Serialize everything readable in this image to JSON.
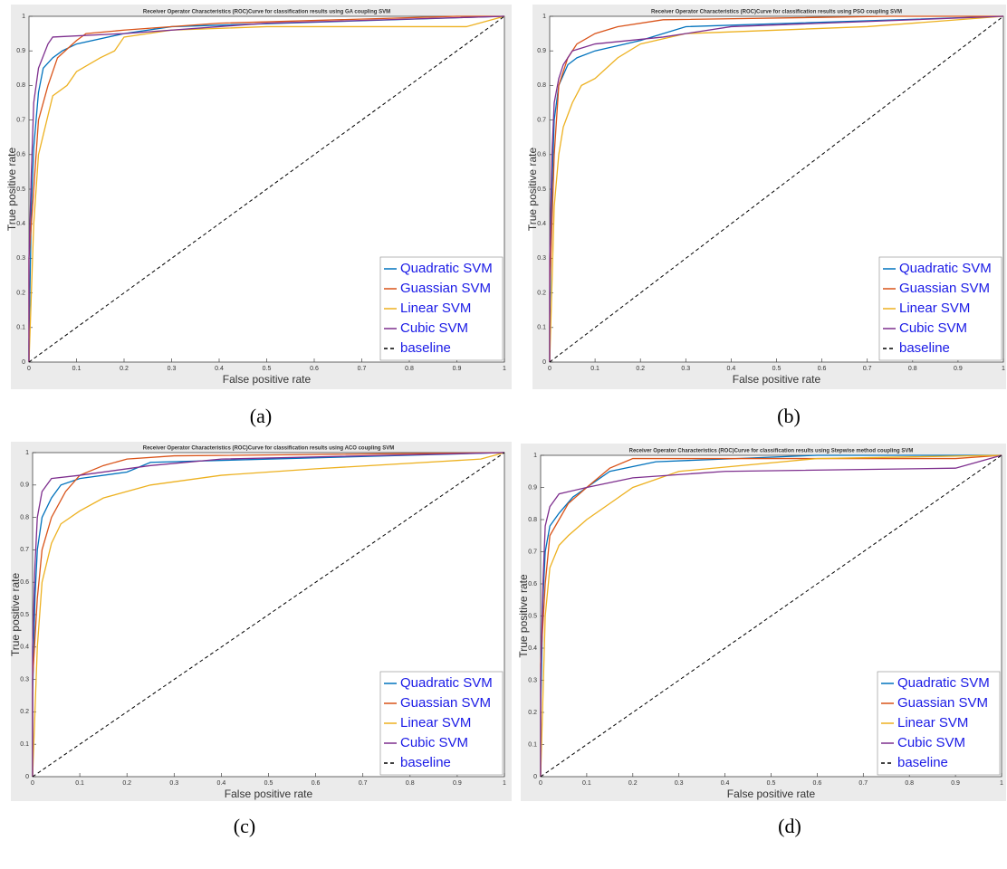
{
  "chart_data": [
    {
      "type": "line",
      "title": "Receiver Operator Characteristics (ROC)Curve for classification results using GA coupling SVM",
      "x_label": "False positive rate",
      "y_label": "True positive rate",
      "caption": "(a)",
      "xlim": [
        0,
        1
      ],
      "ylim": [
        0,
        1
      ],
      "xticks": [
        0,
        0.1,
        0.2,
        0.3,
        0.4,
        0.5,
        0.6,
        0.7,
        0.8,
        0.9,
        1
      ],
      "yticks": [
        0,
        0.1,
        0.2,
        0.3,
        0.4,
        0.5,
        0.6,
        0.7,
        0.8,
        0.9,
        1
      ],
      "legend": "lower right",
      "series": [
        {
          "name": "Quadratic SVM",
          "color": "#0072bd",
          "x": [
            0,
            0,
            0.005,
            0.01,
            0.02,
            0.03,
            0.05,
            0.07,
            0.1,
            0.2,
            0.3,
            1
          ],
          "values": [
            0,
            0.05,
            0.45,
            0.62,
            0.78,
            0.85,
            0.88,
            0.9,
            0.92,
            0.95,
            0.97,
            1
          ]
        },
        {
          "name": "Guassian SVM",
          "color": "#d95319",
          "x": [
            0,
            0,
            0.01,
            0.02,
            0.04,
            0.06,
            0.1,
            0.12,
            0.2,
            0.4,
            0.9,
            1
          ],
          "values": [
            0,
            0.3,
            0.5,
            0.7,
            0.8,
            0.88,
            0.93,
            0.95,
            0.96,
            0.98,
            1,
            1
          ]
        },
        {
          "name": "Linear SVM",
          "color": "#edb120",
          "x": [
            0,
            0.01,
            0.02,
            0.05,
            0.08,
            0.1,
            0.15,
            0.18,
            0.2,
            0.3,
            0.5,
            0.92,
            1
          ],
          "values": [
            0,
            0.4,
            0.6,
            0.77,
            0.8,
            0.84,
            0.88,
            0.9,
            0.94,
            0.96,
            0.97,
            0.97,
            1
          ]
        },
        {
          "name": "Cubic SVM",
          "color": "#7e2f8e",
          "x": [
            0,
            0,
            0.005,
            0.01,
            0.02,
            0.04,
            0.05,
            0.2,
            0.4,
            0.5,
            1
          ],
          "values": [
            0,
            0.3,
            0.55,
            0.75,
            0.85,
            0.92,
            0.94,
            0.95,
            0.97,
            0.98,
            1
          ]
        },
        {
          "name": "baseline",
          "color": "#000000",
          "dashed": true,
          "x": [
            0,
            1
          ],
          "values": [
            0,
            1
          ]
        }
      ]
    },
    {
      "type": "line",
      "title": "Receiver Operator Characteristics (ROC)Curve for classification results using PSO coupling SVM",
      "x_label": "False positive rate",
      "y_label": "True positive rate",
      "caption": "(b)",
      "xlim": [
        0,
        1
      ],
      "ylim": [
        0,
        1
      ],
      "xticks": [
        0,
        0.1,
        0.2,
        0.3,
        0.4,
        0.5,
        0.6,
        0.7,
        0.8,
        0.9,
        1
      ],
      "yticks": [
        0,
        0.1,
        0.2,
        0.3,
        0.4,
        0.5,
        0.6,
        0.7,
        0.8,
        0.9,
        1
      ],
      "legend": "lower right",
      "series": [
        {
          "name": "Quadratic SVM",
          "color": "#0072bd",
          "x": [
            0,
            0,
            0.005,
            0.01,
            0.02,
            0.04,
            0.06,
            0.1,
            0.2,
            0.3,
            1
          ],
          "values": [
            0,
            0.1,
            0.5,
            0.7,
            0.8,
            0.86,
            0.88,
            0.9,
            0.93,
            0.97,
            1
          ]
        },
        {
          "name": "Guassian SVM",
          "color": "#d95319",
          "x": [
            0,
            0,
            0.01,
            0.02,
            0.04,
            0.06,
            0.1,
            0.15,
            0.25,
            0.75,
            1
          ],
          "values": [
            0,
            0.2,
            0.6,
            0.8,
            0.88,
            0.92,
            0.95,
            0.97,
            0.99,
            1,
            1
          ]
        },
        {
          "name": "Linear SVM",
          "color": "#edb120",
          "x": [
            0,
            0.01,
            0.02,
            0.03,
            0.05,
            0.07,
            0.1,
            0.15,
            0.2,
            0.3,
            0.7,
            1
          ],
          "values": [
            0,
            0.45,
            0.6,
            0.68,
            0.75,
            0.8,
            0.82,
            0.88,
            0.92,
            0.95,
            0.97,
            1
          ]
        },
        {
          "name": "Cubic SVM",
          "color": "#7e2f8e",
          "x": [
            0,
            0,
            0.005,
            0.01,
            0.02,
            0.03,
            0.05,
            0.1,
            0.25,
            0.4,
            1
          ],
          "values": [
            0,
            0.3,
            0.6,
            0.75,
            0.82,
            0.86,
            0.9,
            0.92,
            0.94,
            0.97,
            1
          ]
        },
        {
          "name": "baseline",
          "color": "#000000",
          "dashed": true,
          "x": [
            0,
            1
          ],
          "values": [
            0,
            1
          ]
        }
      ]
    },
    {
      "type": "line",
      "title": "Receiver Operator Characteristics (ROC)Curve for classification results using ACO coupling SVM",
      "x_label": "False positive rate",
      "y_label": "True positive rate",
      "caption": "(c)",
      "xlim": [
        0,
        1
      ],
      "ylim": [
        0,
        1
      ],
      "xticks": [
        0,
        0.1,
        0.2,
        0.3,
        0.4,
        0.5,
        0.6,
        0.7,
        0.8,
        0.9,
        1
      ],
      "yticks": [
        0,
        0.1,
        0.2,
        0.3,
        0.4,
        0.5,
        0.6,
        0.7,
        0.8,
        0.9,
        1
      ],
      "legend": "lower right",
      "series": [
        {
          "name": "Quadratic SVM",
          "color": "#0072bd",
          "x": [
            0,
            0,
            0.005,
            0.01,
            0.02,
            0.04,
            0.06,
            0.1,
            0.2,
            0.25,
            1
          ],
          "values": [
            0,
            0.25,
            0.55,
            0.7,
            0.8,
            0.86,
            0.9,
            0.92,
            0.94,
            0.97,
            1
          ]
        },
        {
          "name": "Guassian SVM",
          "color": "#d95319",
          "x": [
            0,
            0,
            0.01,
            0.02,
            0.04,
            0.07,
            0.1,
            0.15,
            0.2,
            0.3,
            1
          ],
          "values": [
            0,
            0.3,
            0.55,
            0.7,
            0.8,
            0.88,
            0.93,
            0.96,
            0.98,
            0.99,
            1
          ]
        },
        {
          "name": "Linear SVM",
          "color": "#edb120",
          "x": [
            0,
            0.01,
            0.02,
            0.04,
            0.06,
            0.1,
            0.15,
            0.25,
            0.4,
            0.6,
            0.95,
            1
          ],
          "values": [
            0,
            0.4,
            0.6,
            0.72,
            0.78,
            0.82,
            0.86,
            0.9,
            0.93,
            0.95,
            0.98,
            1
          ]
        },
        {
          "name": "Cubic SVM",
          "color": "#7e2f8e",
          "x": [
            0,
            0,
            0.005,
            0.01,
            0.02,
            0.04,
            0.1,
            0.25,
            0.4,
            1
          ],
          "values": [
            0,
            0.4,
            0.65,
            0.8,
            0.88,
            0.92,
            0.93,
            0.96,
            0.98,
            1
          ]
        },
        {
          "name": "baseline",
          "color": "#000000",
          "dashed": true,
          "x": [
            0,
            1
          ],
          "values": [
            0,
            1
          ]
        }
      ]
    },
    {
      "type": "line",
      "title": "Receiver Operator Characteristics (ROC)Curve for classification results using Stepwise method coupling SVM",
      "x_label": "False positive rate",
      "y_label": "True positive rate",
      "caption": "(d)",
      "xlim": [
        0,
        1
      ],
      "ylim": [
        0,
        1
      ],
      "xticks": [
        0,
        0.1,
        0.2,
        0.3,
        0.4,
        0.5,
        0.6,
        0.7,
        0.8,
        0.9,
        1
      ],
      "yticks": [
        0,
        0.1,
        0.2,
        0.3,
        0.4,
        0.5,
        0.6,
        0.7,
        0.8,
        0.9,
        1
      ],
      "legend": "lower right",
      "series": [
        {
          "name": "Quadratic SVM",
          "color": "#0072bd",
          "x": [
            0,
            0,
            0.005,
            0.01,
            0.02,
            0.04,
            0.07,
            0.1,
            0.15,
            0.25,
            0.6,
            1
          ],
          "values": [
            0,
            0.2,
            0.55,
            0.7,
            0.78,
            0.82,
            0.87,
            0.9,
            0.95,
            0.98,
            1,
            1
          ]
        },
        {
          "name": "Guassian SVM",
          "color": "#d95319",
          "x": [
            0,
            0,
            0.01,
            0.02,
            0.04,
            0.06,
            0.1,
            0.15,
            0.2,
            0.9,
            1
          ],
          "values": [
            0,
            0.35,
            0.6,
            0.75,
            0.8,
            0.85,
            0.9,
            0.96,
            0.99,
            0.99,
            1
          ]
        },
        {
          "name": "Linear SVM",
          "color": "#edb120",
          "x": [
            0,
            0.01,
            0.02,
            0.04,
            0.06,
            0.1,
            0.15,
            0.2,
            0.3,
            0.6,
            1
          ],
          "values": [
            0,
            0.5,
            0.65,
            0.72,
            0.75,
            0.8,
            0.85,
            0.9,
            0.95,
            0.99,
            1
          ]
        },
        {
          "name": "Cubic SVM",
          "color": "#7e2f8e",
          "x": [
            0,
            0,
            0.005,
            0.01,
            0.02,
            0.04,
            0.1,
            0.2,
            0.4,
            0.9,
            0.95,
            1
          ],
          "values": [
            0,
            0.3,
            0.6,
            0.78,
            0.84,
            0.88,
            0.9,
            0.93,
            0.95,
            0.96,
            0.98,
            1
          ]
        },
        {
          "name": "baseline",
          "color": "#000000",
          "dashed": true,
          "x": [
            0,
            1
          ],
          "values": [
            0,
            1
          ]
        }
      ]
    }
  ]
}
